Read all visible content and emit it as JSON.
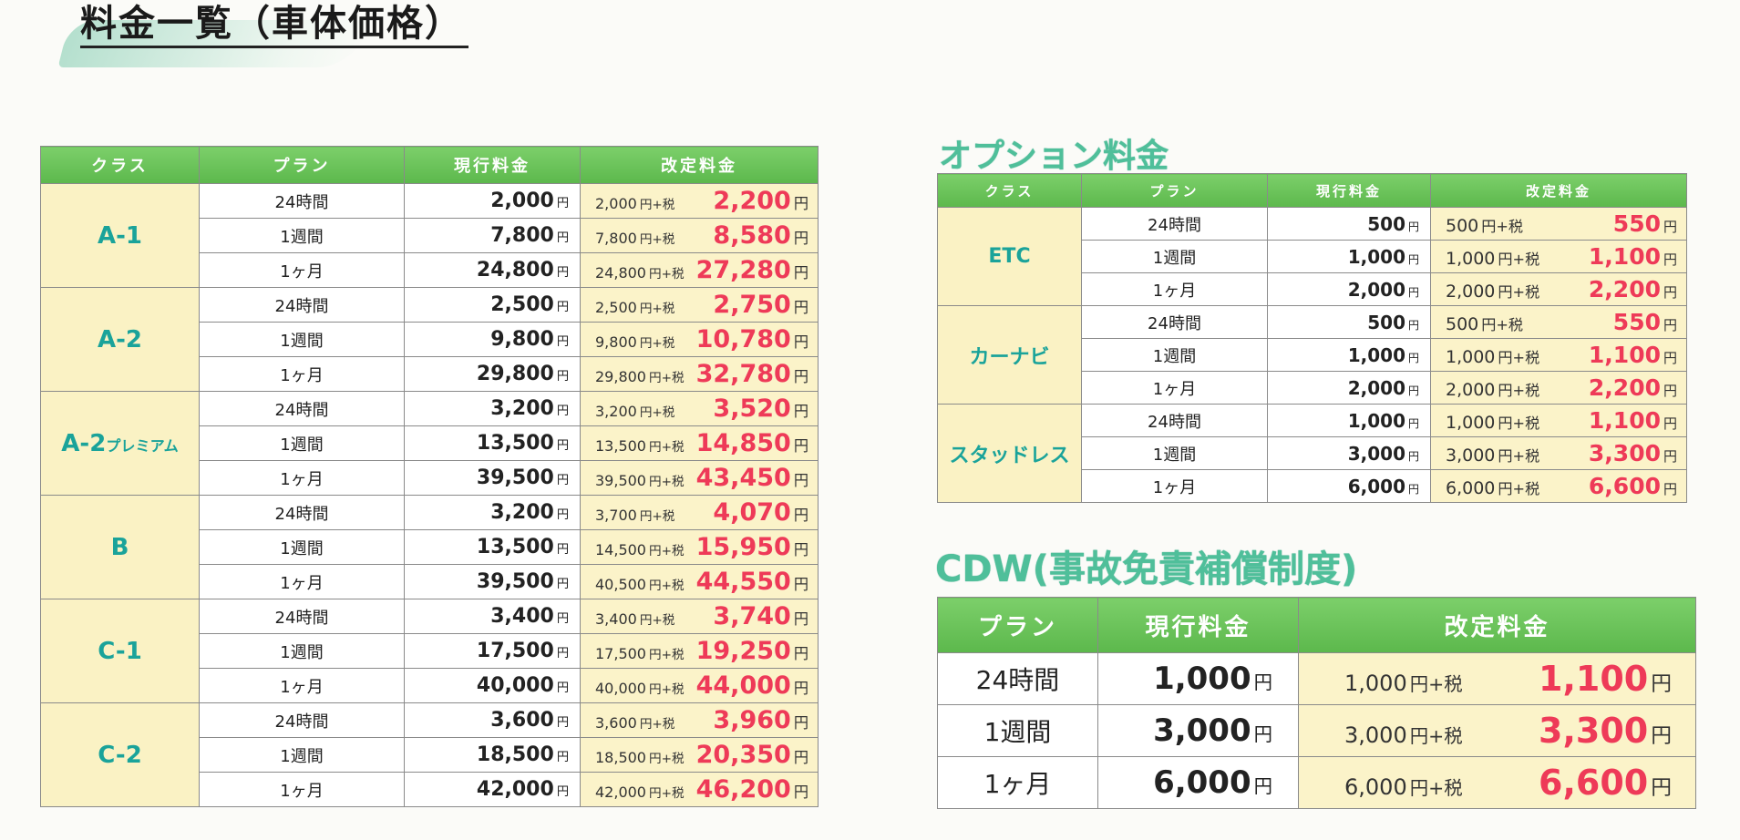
{
  "title": "料金一覧（車体価格）",
  "yen": "円",
  "tax_suffix": "円+税",
  "main": {
    "headers": [
      "クラス",
      "プラン",
      "現行料金",
      "改定料金"
    ],
    "groups": [
      {
        "class": "A-1",
        "rows": [
          {
            "plan": "24時間",
            "current": "2,000",
            "revised_base": "2,000",
            "revised": "2,200"
          },
          {
            "plan": "1週間",
            "current": "7,800",
            "revised_base": "7,800",
            "revised": "8,580"
          },
          {
            "plan": "1ヶ月",
            "current": "24,800",
            "revised_base": "24,800",
            "revised": "27,280"
          }
        ]
      },
      {
        "class": "A-2",
        "rows": [
          {
            "plan": "24時間",
            "current": "2,500",
            "revised_base": "2,500",
            "revised": "2,750"
          },
          {
            "plan": "1週間",
            "current": "9,800",
            "revised_base": "9,800",
            "revised": "10,780"
          },
          {
            "plan": "1ヶ月",
            "current": "29,800",
            "revised_base": "29,800",
            "revised": "32,780"
          }
        ]
      },
      {
        "class": "A-2",
        "class_suffix": "プレミアム",
        "rows": [
          {
            "plan": "24時間",
            "current": "3,200",
            "revised_base": "3,200",
            "revised": "3,520"
          },
          {
            "plan": "1週間",
            "current": "13,500",
            "revised_base": "13,500",
            "revised": "14,850"
          },
          {
            "plan": "1ヶ月",
            "current": "39,500",
            "revised_base": "39,500",
            "revised": "43,450"
          }
        ]
      },
      {
        "class": "B",
        "rows": [
          {
            "plan": "24時間",
            "current": "3,200",
            "revised_base": "3,700",
            "revised": "4,070"
          },
          {
            "plan": "1週間",
            "current": "13,500",
            "revised_base": "14,500",
            "revised": "15,950"
          },
          {
            "plan": "1ヶ月",
            "current": "39,500",
            "revised_base": "40,500",
            "revised": "44,550"
          }
        ]
      },
      {
        "class": "C-1",
        "rows": [
          {
            "plan": "24時間",
            "current": "3,400",
            "revised_base": "3,400",
            "revised": "3,740"
          },
          {
            "plan": "1週間",
            "current": "17,500",
            "revised_base": "17,500",
            "revised": "19,250"
          },
          {
            "plan": "1ヶ月",
            "current": "40,000",
            "revised_base": "40,000",
            "revised": "44,000"
          }
        ]
      },
      {
        "class": "C-2",
        "rows": [
          {
            "plan": "24時間",
            "current": "3,600",
            "revised_base": "3,600",
            "revised": "3,960"
          },
          {
            "plan": "1週間",
            "current": "18,500",
            "revised_base": "18,500",
            "revised": "20,350"
          },
          {
            "plan": "1ヶ月",
            "current": "42,000",
            "revised_base": "42,000",
            "revised": "46,200"
          }
        ]
      }
    ]
  },
  "options": {
    "title": "オプション料金",
    "headers": [
      "クラス",
      "プラン",
      "現行料金",
      "改定料金"
    ],
    "groups": [
      {
        "class": "ETC",
        "rows": [
          {
            "plan": "24時間",
            "current": "500",
            "revised_base": "500",
            "revised": "550"
          },
          {
            "plan": "1週間",
            "current": "1,000",
            "revised_base": "1,000",
            "revised": "1,100"
          },
          {
            "plan": "1ヶ月",
            "current": "2,000",
            "revised_base": "2,000",
            "revised": "2,200"
          }
        ]
      },
      {
        "class": "カーナビ",
        "rows": [
          {
            "plan": "24時間",
            "current": "500",
            "revised_base": "500",
            "revised": "550"
          },
          {
            "plan": "1週間",
            "current": "1,000",
            "revised_base": "1,000",
            "revised": "1,100"
          },
          {
            "plan": "1ヶ月",
            "current": "2,000",
            "revised_base": "2,000",
            "revised": "2,200"
          }
        ]
      },
      {
        "class": "スタッドレス",
        "rows": [
          {
            "plan": "24時間",
            "current": "1,000",
            "revised_base": "1,000",
            "revised": "1,100"
          },
          {
            "plan": "1週間",
            "current": "3,000",
            "revised_base": "3,000",
            "revised": "3,300"
          },
          {
            "plan": "1ヶ月",
            "current": "6,000",
            "revised_base": "6,000",
            "revised": "6,600"
          }
        ]
      }
    ]
  },
  "cdw": {
    "title": "CDW(事故免責補償制度)",
    "headers": [
      "プラン",
      "現行料金",
      "改定料金"
    ],
    "rows": [
      {
        "plan": "24時間",
        "current": "1,000",
        "revised_base": "1,000",
        "revised": "1,100"
      },
      {
        "plan": "1週間",
        "current": "3,000",
        "revised_base": "3,000",
        "revised": "3,300"
      },
      {
        "plan": "1ヶ月",
        "current": "6,000",
        "revised_base": "6,000",
        "revised": "6,600"
      }
    ]
  }
}
